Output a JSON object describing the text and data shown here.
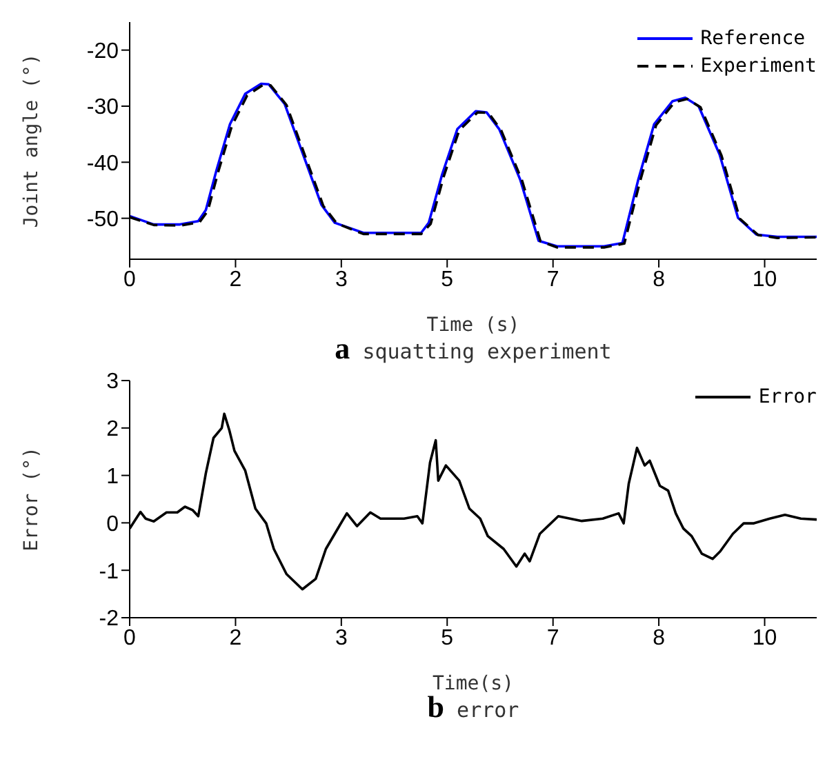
{
  "chart_data": [
    {
      "type": "line",
      "title": "a squatting experiment",
      "xlabel": "Time (s)",
      "ylabel": "Joint angle (°)",
      "xlim": [
        0,
        10.82
      ],
      "ylim": [
        -57.3,
        -15
      ],
      "xticks": [
        {
          "value": 0,
          "label": "0"
        },
        {
          "value": 1.667,
          "label": "2"
        },
        {
          "value": 3.333,
          "label": "3"
        },
        {
          "value": 5,
          "label": "5"
        },
        {
          "value": 6.667,
          "label": "7"
        },
        {
          "value": 8.333,
          "label": "8"
        },
        {
          "value": 10,
          "label": "10"
        }
      ],
      "yticks": [
        -50,
        -40,
        -30,
        -20
      ],
      "legend": "top right",
      "grid": false,
      "marker": "none",
      "series": [
        {
          "name": "Reference",
          "color": "#0000ff",
          "line_style": "solid",
          "x": [
            0,
            0.38,
            0.79,
            1.08,
            1.2,
            1.37,
            1.58,
            1.82,
            2.07,
            2.19,
            2.44,
            2.73,
            3.02,
            3.23,
            3.68,
            4.59,
            4.71,
            4.92,
            5.16,
            5.45,
            5.62,
            5.82,
            6.15,
            6.44,
            6.73,
            7.47,
            7.76,
            8.01,
            8.26,
            8.55,
            8.75,
            8.96,
            9.29,
            9.58,
            9.87,
            10.2,
            10.82
          ],
          "values": [
            -49.6,
            -51.1,
            -51.1,
            -50.5,
            -48.5,
            -41.3,
            -33.2,
            -27.8,
            -26,
            -26.1,
            -29.6,
            -38.6,
            -47.6,
            -50.8,
            -52.6,
            -52.6,
            -50.8,
            -42.2,
            -34.1,
            -30.9,
            -31.1,
            -34.1,
            -43.1,
            -54,
            -55,
            -55,
            -54.4,
            -43.1,
            -33.2,
            -29.1,
            -28.5,
            -30,
            -38.6,
            -49.9,
            -52.9,
            -53.3,
            -53.3
          ]
        },
        {
          "name": "Experiment",
          "color": "#000000",
          "line_style": "dashed",
          "x": [
            0,
            0.38,
            0.79,
            1.1,
            1.23,
            1.4,
            1.61,
            1.85,
            2.1,
            2.22,
            2.47,
            2.76,
            3.05,
            3.26,
            3.68,
            4.59,
            4.74,
            4.95,
            5.19,
            5.48,
            5.65,
            5.85,
            6.18,
            6.47,
            6.73,
            7.47,
            7.79,
            8.04,
            8.29,
            8.58,
            8.78,
            8.99,
            9.32,
            9.61,
            9.9,
            10.2,
            10.82
          ],
          "values": [
            -49.8,
            -51.2,
            -51.3,
            -50.7,
            -48.7,
            -41.5,
            -33.5,
            -28.1,
            -26.2,
            -26.3,
            -29.8,
            -38.8,
            -47.8,
            -50.9,
            -52.8,
            -52.8,
            -51,
            -42.4,
            -34.3,
            -31.1,
            -31.2,
            -34.3,
            -43.3,
            -54.1,
            -55.2,
            -55.2,
            -54.5,
            -43.3,
            -33.4,
            -29.3,
            -28.7,
            -30.2,
            -38.8,
            -50.1,
            -53,
            -53.5,
            -53.4
          ]
        }
      ]
    },
    {
      "type": "line",
      "title": "b error",
      "xlabel": "Time(s)",
      "ylabel": "Error (°)",
      "xlim": [
        0,
        10.82
      ],
      "ylim": [
        -2,
        3
      ],
      "xticks": [
        {
          "value": 0,
          "label": "0"
        },
        {
          "value": 1.667,
          "label": "2"
        },
        {
          "value": 3.333,
          "label": "3"
        },
        {
          "value": 5,
          "label": "5"
        },
        {
          "value": 6.667,
          "label": "7"
        },
        {
          "value": 8.333,
          "label": "8"
        },
        {
          "value": 10,
          "label": "10"
        }
      ],
      "yticks": [
        -2,
        -1,
        0,
        1,
        2,
        3
      ],
      "legend": "top right",
      "grid": false,
      "marker": "none",
      "series": [
        {
          "name": "Error",
          "color": "#000000",
          "line_style": "solid",
          "x": [
            0,
            0.17,
            0.25,
            0.38,
            0.58,
            0.75,
            0.87,
            0.99,
            1.08,
            1.2,
            1.32,
            1.45,
            1.49,
            1.57,
            1.65,
            1.82,
            1.98,
            2.15,
            2.27,
            2.47,
            2.72,
            2.93,
            3.09,
            3.3,
            3.42,
            3.58,
            3.79,
            3.95,
            4.32,
            4.53,
            4.61,
            4.73,
            4.82,
            4.86,
            4.98,
            5.19,
            5.35,
            5.52,
            5.64,
            5.89,
            6.09,
            6.22,
            6.3,
            6.46,
            6.75,
            7.12,
            7.45,
            7.7,
            7.78,
            7.86,
            7.99,
            8.11,
            8.19,
            8.35,
            8.48,
            8.6,
            8.72,
            8.85,
            9.01,
            9.18,
            9.3,
            9.5,
            9.67,
            9.83,
            10.08,
            10.32,
            10.57,
            10.82
          ],
          "values": [
            -0.12,
            0.23,
            0.09,
            0.03,
            0.22,
            0.22,
            0.34,
            0.27,
            0.14,
            1.05,
            1.79,
            2,
            2.3,
            1.95,
            1.52,
            1.1,
            0.3,
            -0.01,
            -0.55,
            -1.08,
            -1.4,
            -1.18,
            -0.55,
            -0.07,
            0.2,
            -0.07,
            0.22,
            0.09,
            0.09,
            0.14,
            -0.01,
            1.27,
            1.74,
            0.89,
            1.21,
            0.89,
            0.3,
            0.09,
            -0.28,
            -0.55,
            -0.92,
            -0.65,
            -0.81,
            -0.23,
            0.14,
            0.04,
            0.09,
            0.2,
            -0.01,
            0.83,
            1.58,
            1.21,
            1.31,
            0.78,
            0.68,
            0.2,
            -0.12,
            -0.28,
            -0.65,
            -0.76,
            -0.6,
            -0.23,
            -0.01,
            -0.01,
            0.09,
            0.17,
            0.09,
            0.07
          ]
        }
      ]
    }
  ]
}
